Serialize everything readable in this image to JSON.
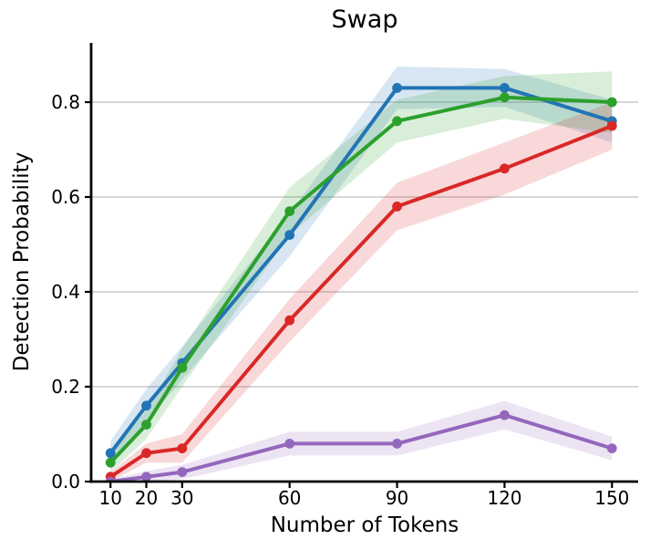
{
  "figure": {
    "title": "Swap",
    "xlabel": "Number of Tokens",
    "ylabel": "Detection Probability"
  },
  "chart_data": {
    "type": "line",
    "title": "Swap",
    "xlabel": "Number of Tokens",
    "ylabel": "Detection Probability",
    "x": [
      10,
      20,
      30,
      60,
      90,
      120,
      150
    ],
    "xticks": [
      10,
      20,
      30,
      60,
      90,
      120,
      150
    ],
    "yticks": [
      0.0,
      0.2,
      0.4,
      0.6,
      0.8
    ],
    "xlim": [
      4.6,
      157.3
    ],
    "ylim": [
      0,
      0.925
    ],
    "grid": "horizontal",
    "legend": "none",
    "series": [
      {
        "name": "blue",
        "color": "#2274b5",
        "values": [
          0.06,
          0.16,
          0.25,
          0.52,
          0.83,
          0.83,
          0.76
        ],
        "band_halfwidth": [
          0.025,
          0.035,
          0.035,
          0.045,
          0.045,
          0.04,
          0.045
        ]
      },
      {
        "name": "green",
        "color": "#2ca02c",
        "values": [
          0.04,
          0.12,
          0.24,
          0.57,
          0.76,
          0.81,
          0.8
        ],
        "band_halfwidth": [
          0.02,
          0.03,
          0.04,
          0.05,
          0.045,
          0.045,
          0.065
        ]
      },
      {
        "name": "red",
        "color": "#d92827",
        "values": [
          0.01,
          0.06,
          0.07,
          0.34,
          0.58,
          0.66,
          0.75
        ],
        "band_halfwidth": [
          0.01,
          0.02,
          0.03,
          0.045,
          0.05,
          0.055,
          0.05
        ]
      },
      {
        "name": "purple",
        "color": "#9467bd",
        "values": [
          0.0,
          0.01,
          0.02,
          0.08,
          0.08,
          0.14,
          0.07
        ],
        "band_halfwidth": [
          0.005,
          0.012,
          0.015,
          0.025,
          0.025,
          0.03,
          0.025
        ]
      }
    ],
    "styles": {
      "grid_color": "#c8c8c8",
      "axis_color": "#000000",
      "band_opacity": 0.18,
      "line_width": 4,
      "marker_radius": 5.4
    }
  }
}
